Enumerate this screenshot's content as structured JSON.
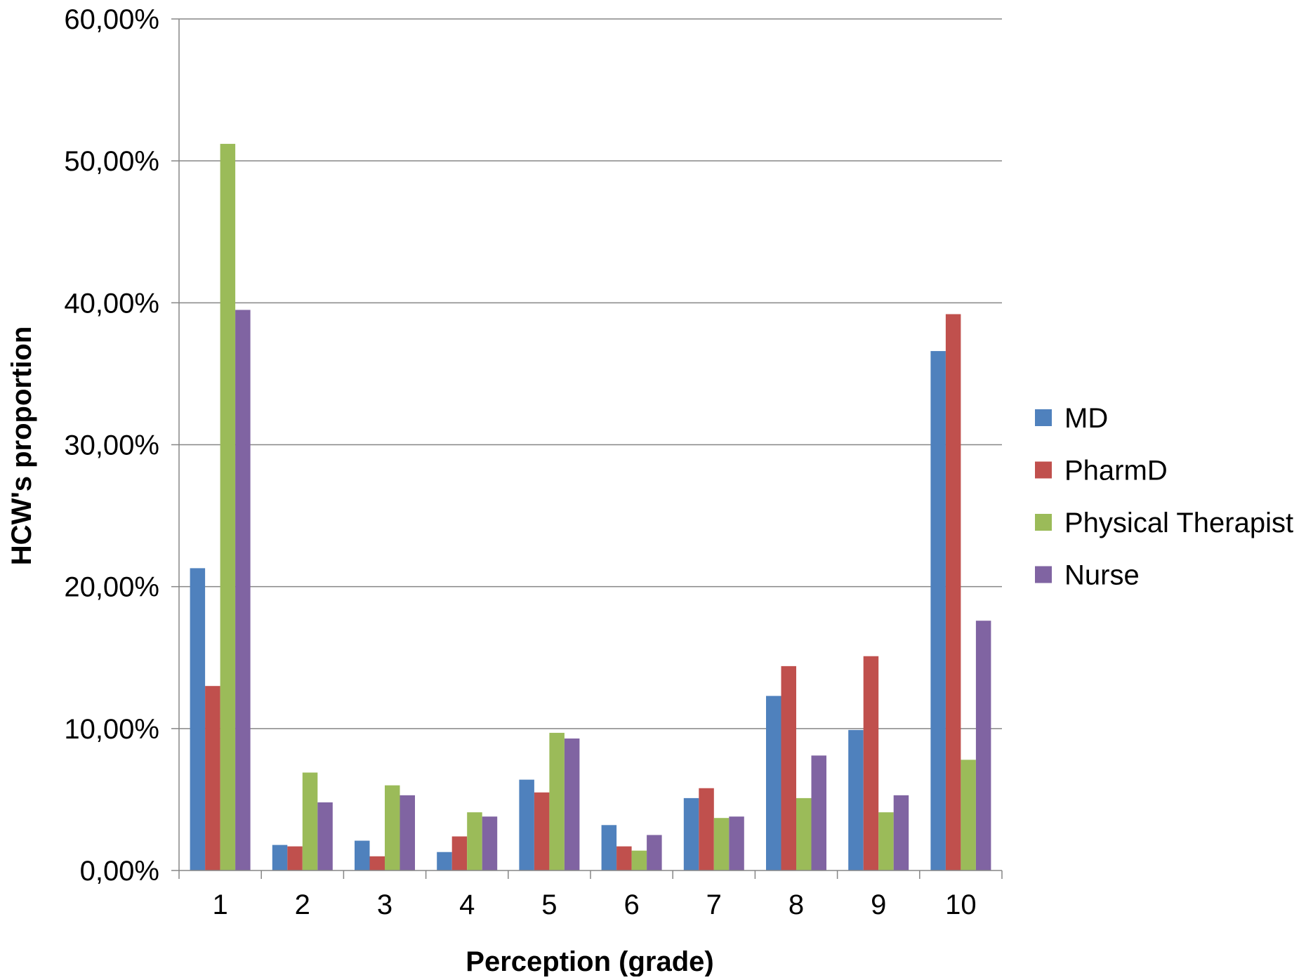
{
  "chart_data": {
    "type": "bar",
    "title": "",
    "xlabel": "Perception (grade)",
    "ylabel": "HCW's proportion",
    "categories": [
      "1",
      "2",
      "3",
      "4",
      "5",
      "6",
      "7",
      "8",
      "9",
      "10"
    ],
    "ylim": [
      0,
      60
    ],
    "y_ticks": [
      0,
      10,
      20,
      30,
      40,
      50,
      60
    ],
    "y_tick_labels": [
      "0,00%",
      "10,00%",
      "20,00%",
      "30,00%",
      "40,00%",
      "50,00%",
      "60,00%"
    ],
    "grid": "horizontal",
    "legend_position": "right",
    "series": [
      {
        "name": "MD",
        "color": "#4F81BD",
        "values": [
          21.3,
          1.8,
          2.1,
          1.3,
          6.4,
          3.2,
          5.1,
          12.3,
          9.9,
          36.6
        ]
      },
      {
        "name": "PharmD",
        "color": "#C0504D",
        "values": [
          13.0,
          1.7,
          1.0,
          2.4,
          5.5,
          1.7,
          5.8,
          14.4,
          15.1,
          39.2
        ]
      },
      {
        "name": "Physical Therapist",
        "color": "#9BBB59",
        "values": [
          51.2,
          6.9,
          6.0,
          4.1,
          9.7,
          1.4,
          3.7,
          5.1,
          4.1,
          7.8
        ]
      },
      {
        "name": "Nurse",
        "color": "#8064A2",
        "values": [
          39.5,
          4.8,
          5.3,
          3.8,
          9.3,
          2.5,
          3.8,
          8.1,
          5.3,
          17.6
        ]
      }
    ]
  }
}
